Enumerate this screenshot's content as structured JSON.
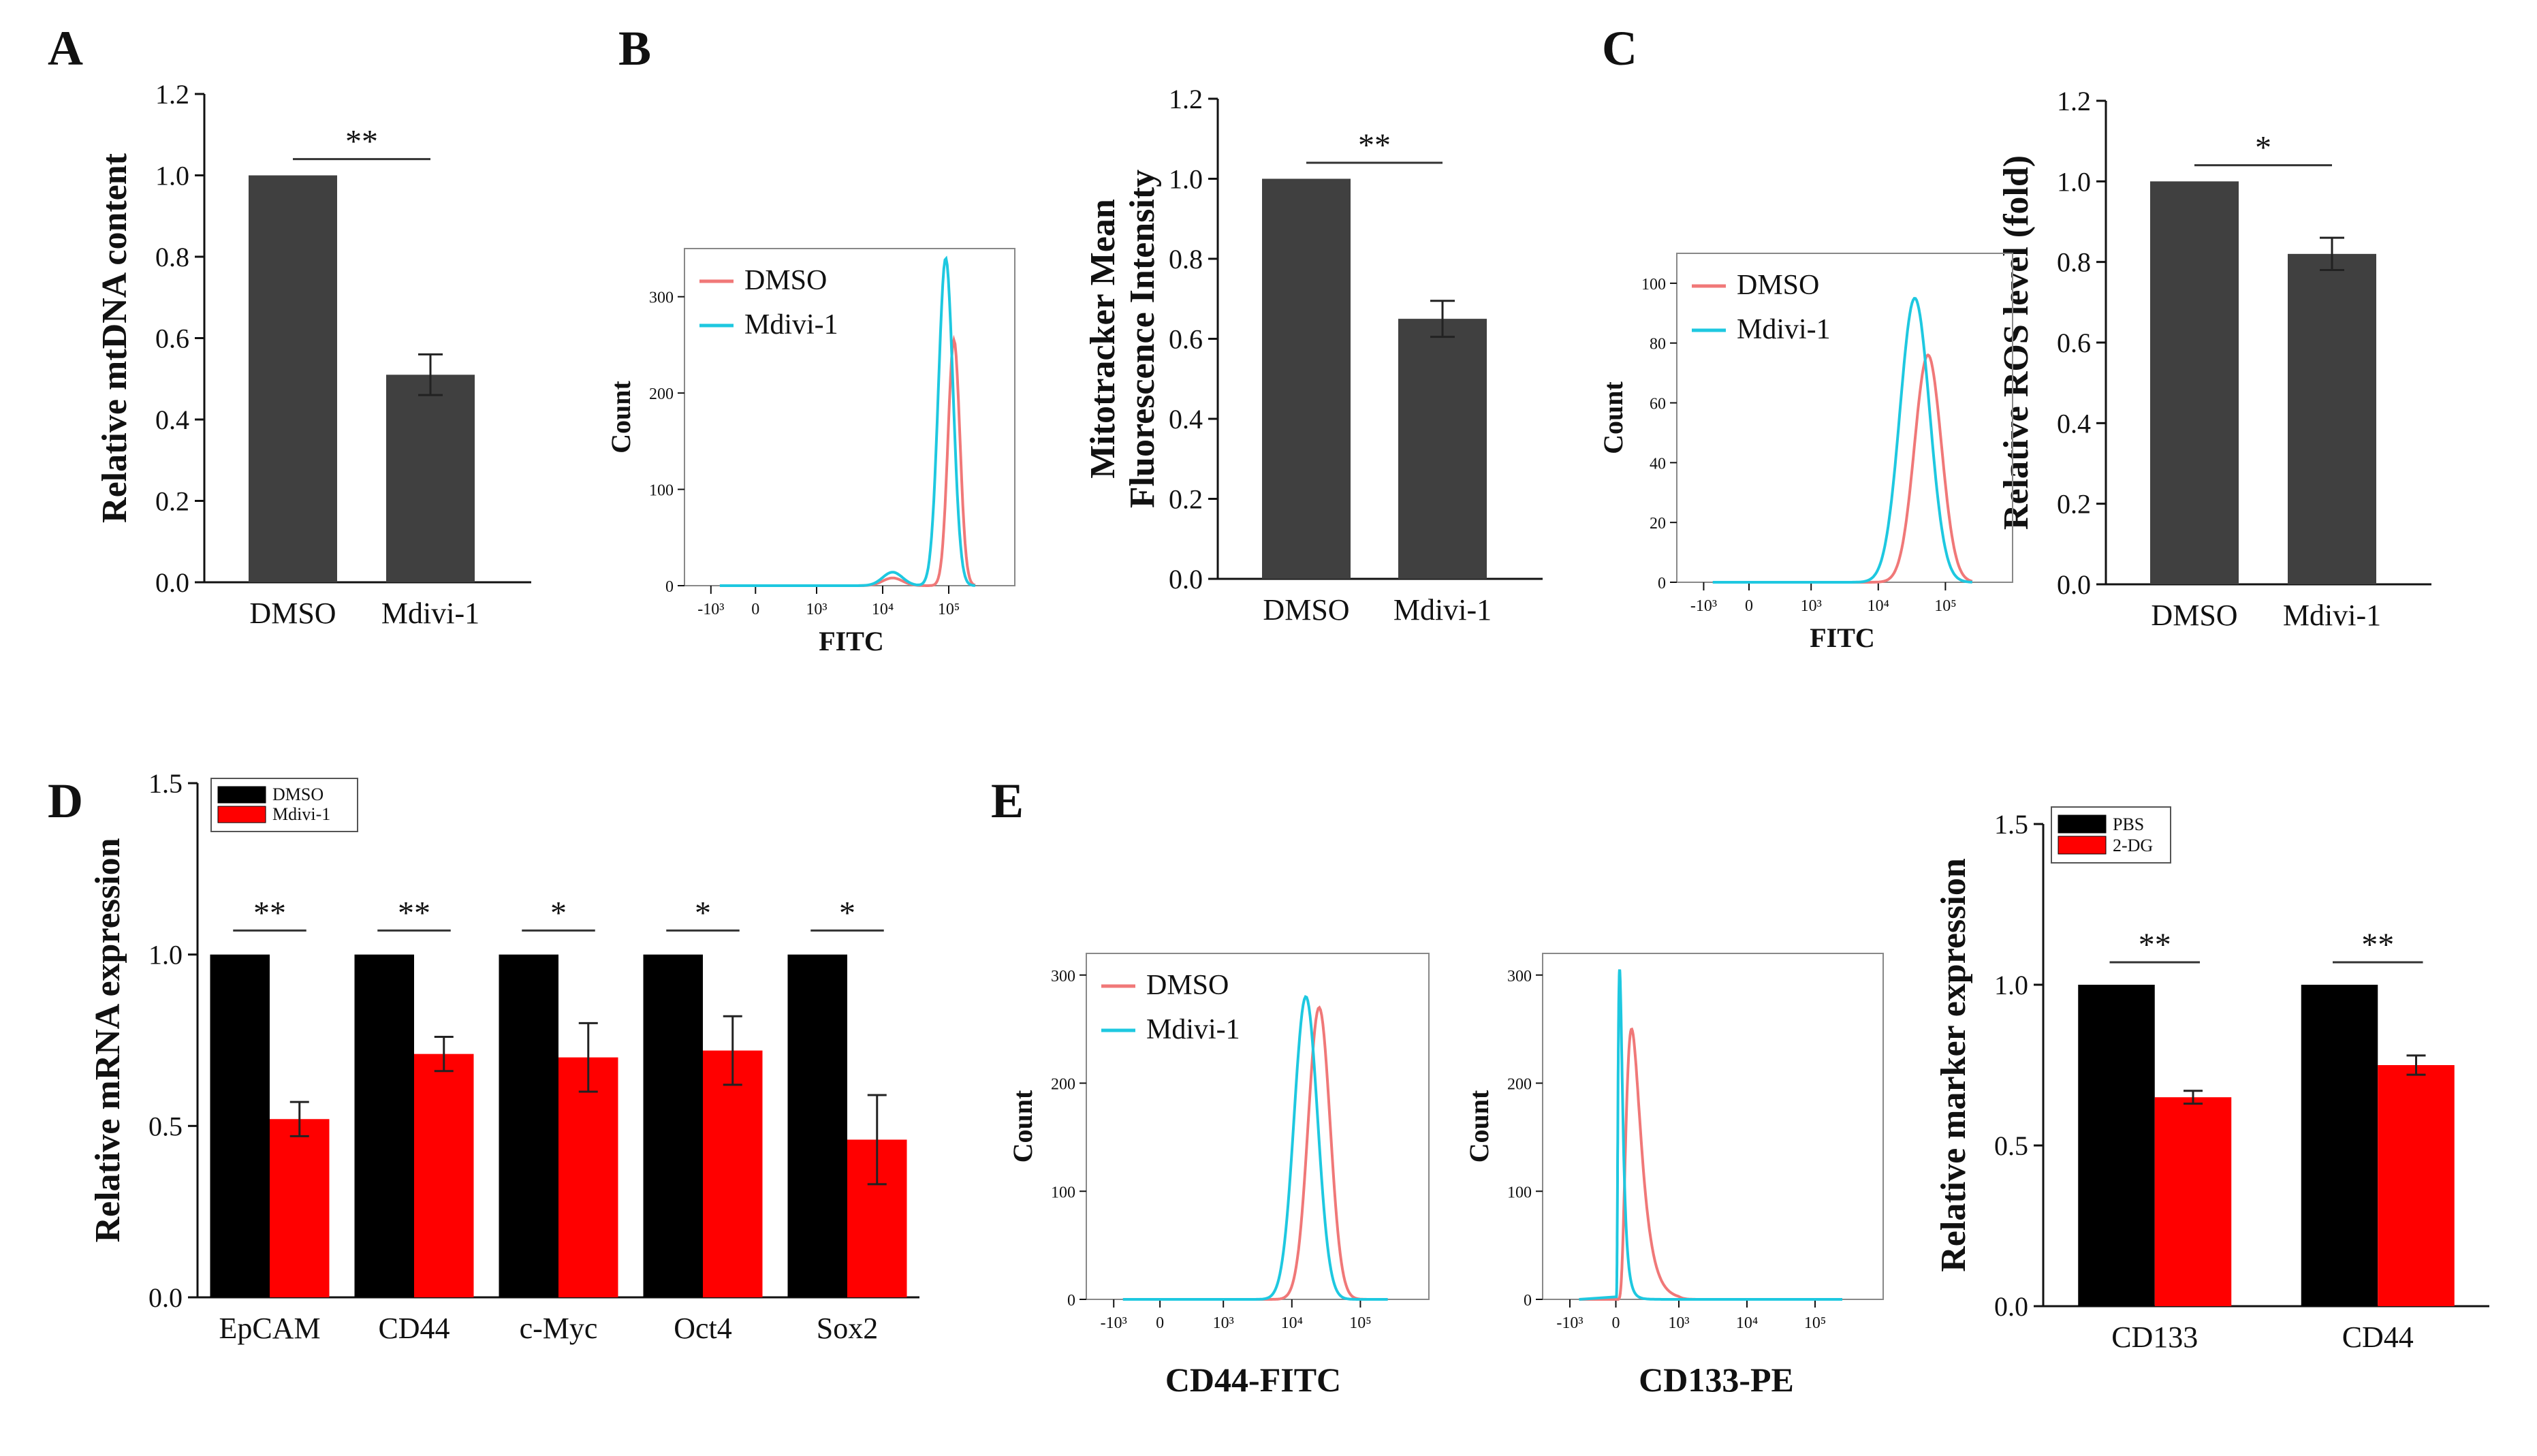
{
  "panels": {
    "A": "A",
    "B": "B",
    "C": "C",
    "D": "D",
    "E": "E"
  },
  "chart_data": [
    {
      "id": "A",
      "type": "bar",
      "title": "",
      "xlabel": "",
      "ylabel": "Relative mtDNA content",
      "ylim": [
        0.0,
        1.2
      ],
      "yticks": [
        "0.0",
        "0.2",
        "0.4",
        "0.6",
        "0.8",
        "1.0",
        "1.2"
      ],
      "categories": [
        "DMSO",
        "Mdivi-1"
      ],
      "values": [
        1.0,
        0.51
      ],
      "errors": [
        0,
        0.05
      ],
      "significance": "**",
      "bar_color": "#404040"
    },
    {
      "id": "B-flow",
      "type": "line",
      "title": "",
      "xlabel": "FITC",
      "ylabel": "Count",
      "ylim": [
        0,
        350
      ],
      "yticks": [
        "0",
        "100",
        "200",
        "300"
      ],
      "xticks": [
        "-10³",
        "0",
        "10³",
        "10⁴",
        "10⁵"
      ],
      "series": [
        {
          "name": "DMSO",
          "color": "#f07878",
          "peak_x": 120000.0,
          "peak_count": 255
        },
        {
          "name": "Mdivi-1",
          "color": "#1ec8e0",
          "peak_x": 90000.0,
          "peak_count": 340
        }
      ]
    },
    {
      "id": "B-bar",
      "type": "bar",
      "title": "",
      "xlabel": "",
      "ylabel": "Mitotracker Mean Fluorescence Intensity",
      "ylabel_lines": [
        "Mitotracker Mean",
        "Fluorescence Intensity"
      ],
      "ylim": [
        0.0,
        1.2
      ],
      "yticks": [
        "0.0",
        "0.2",
        "0.4",
        "0.6",
        "0.8",
        "1.0",
        "1.2"
      ],
      "categories": [
        "DMSO",
        "Mdivi-1"
      ],
      "values": [
        1.0,
        0.65
      ],
      "errors": [
        0,
        0.045
      ],
      "significance": "**",
      "bar_color": "#404040"
    },
    {
      "id": "C-flow",
      "type": "line",
      "title": "",
      "xlabel": "FITC",
      "ylabel": "Count",
      "ylim": [
        0,
        110
      ],
      "yticks": [
        "0",
        "20",
        "40",
        "60",
        "80",
        "100"
      ],
      "xticks": [
        "-10³",
        "0",
        "10³",
        "10⁴",
        "10⁵"
      ],
      "series": [
        {
          "name": "DMSO",
          "color": "#f07878",
          "peak_x": 55000.0,
          "peak_count": 76
        },
        {
          "name": "Mdivi-1",
          "color": "#1ec8e0",
          "peak_x": 35000.0,
          "peak_count": 95
        }
      ]
    },
    {
      "id": "C-bar",
      "type": "bar",
      "title": "",
      "xlabel": "",
      "ylabel": "Relative ROS level (fold)",
      "ylim": [
        0.0,
        1.2
      ],
      "yticks": [
        "0.0",
        "0.2",
        "0.4",
        "0.6",
        "0.8",
        "1.0",
        "1.2"
      ],
      "categories": [
        "DMSO",
        "Mdivi-1"
      ],
      "values": [
        1.0,
        0.82
      ],
      "errors": [
        0,
        0.04
      ],
      "significance": "*",
      "bar_color": "#404040"
    },
    {
      "id": "D",
      "type": "bar",
      "title": "",
      "xlabel": "",
      "ylabel": "Relative mRNA expression",
      "ylim": [
        0.0,
        1.5
      ],
      "yticks": [
        "0.0",
        "0.5",
        "1.0",
        "1.5"
      ],
      "categories": [
        "EpCAM",
        "CD44",
        "c-Myc",
        "Oct4",
        "Sox2"
      ],
      "series": [
        {
          "name": "DMSO",
          "color": "#000000",
          "values": [
            1.0,
            1.0,
            1.0,
            1.0,
            1.0
          ],
          "errors": [
            0,
            0,
            0,
            0,
            0
          ]
        },
        {
          "name": "Mdivi-1",
          "color": "#ff0000",
          "values": [
            0.52,
            0.71,
            0.7,
            0.72,
            0.46
          ],
          "errors": [
            0.05,
            0.05,
            0.1,
            0.1,
            0.13
          ]
        }
      ],
      "significance": [
        "**",
        "**",
        "*",
        "*",
        "*"
      ]
    },
    {
      "id": "E-flow-CD44",
      "type": "line",
      "title": "",
      "xlabel": "CD44-FITC",
      "ylabel": "Count",
      "ylim": [
        0,
        320
      ],
      "yticks": [
        "0",
        "100",
        "200",
        "300"
      ],
      "xticks": [
        "-10³",
        "0",
        "10³",
        "10⁴",
        "10⁵"
      ],
      "series": [
        {
          "name": "DMSO",
          "color": "#f07878",
          "peak_x": 25000.0,
          "peak_count": 270
        },
        {
          "name": "Mdivi-1",
          "color": "#1ec8e0",
          "peak_x": 16000.0,
          "peak_count": 280
        }
      ]
    },
    {
      "id": "E-flow-CD133",
      "type": "line",
      "title": "",
      "xlabel": "CD133-PE",
      "ylabel": "Count",
      "ylim": [
        0,
        320
      ],
      "yticks": [
        "0",
        "100",
        "200",
        "300"
      ],
      "xticks": [
        "-10³",
        "0",
        "10³",
        "10⁴",
        "10⁵"
      ],
      "series": [
        {
          "name": "DMSO",
          "color": "#f07878",
          "peak_x": 250,
          "peak_count": 250
        },
        {
          "name": "Mdivi-1",
          "color": "#1ec8e0",
          "peak_x": 60,
          "peak_count": 305
        }
      ]
    },
    {
      "id": "E-bar",
      "type": "bar",
      "title": "",
      "xlabel": "",
      "ylabel": "Relative marker expression",
      "ylim": [
        0.0,
        1.5
      ],
      "yticks": [
        "0.0",
        "0.5",
        "1.0",
        "1.5"
      ],
      "categories": [
        "CD133",
        "CD44"
      ],
      "series": [
        {
          "name": "PBS",
          "color": "#000000",
          "values": [
            1.0,
            1.0
          ],
          "errors": [
            0,
            0
          ]
        },
        {
          "name": "2-DG",
          "color": "#ff0000",
          "values": [
            0.65,
            0.75
          ],
          "errors": [
            0.02,
            0.03
          ]
        }
      ],
      "significance": [
        "**",
        "**"
      ]
    }
  ]
}
